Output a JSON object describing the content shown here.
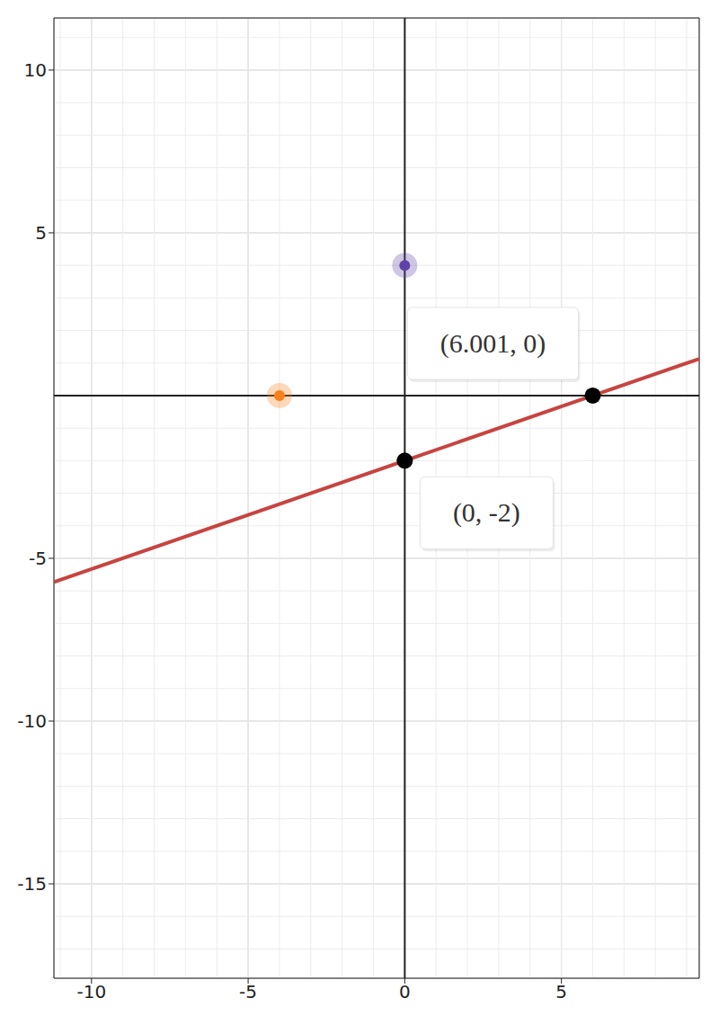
{
  "chart_data": {
    "type": "scatter",
    "xlim": [
      -11.2,
      9.4
    ],
    "ylim": [
      -17.9,
      11.6
    ],
    "xticks": [
      -10,
      -5,
      0,
      5
    ],
    "yticks": [
      -15,
      -10,
      -5,
      5,
      10
    ],
    "grid": true,
    "series": [
      {
        "type": "line",
        "color": "#c74440",
        "x": [
          -11.2,
          9.4
        ],
        "values": [
          -5.73,
          1.13
        ]
      },
      {
        "type": "scatter",
        "color": "#000000",
        "x": [
          0,
          6.001
        ],
        "values": [
          -2,
          0
        ],
        "value_labels": [
          "(0, -2)",
          "(6.001, 0)"
        ],
        "data_labels": true
      },
      {
        "type": "scatter",
        "color": "#6042a6",
        "x": [
          0
        ],
        "values": [
          4
        ]
      },
      {
        "type": "scatter",
        "color": "#fa7e19",
        "x": [
          -4
        ],
        "values": [
          0
        ]
      }
    ]
  }
}
